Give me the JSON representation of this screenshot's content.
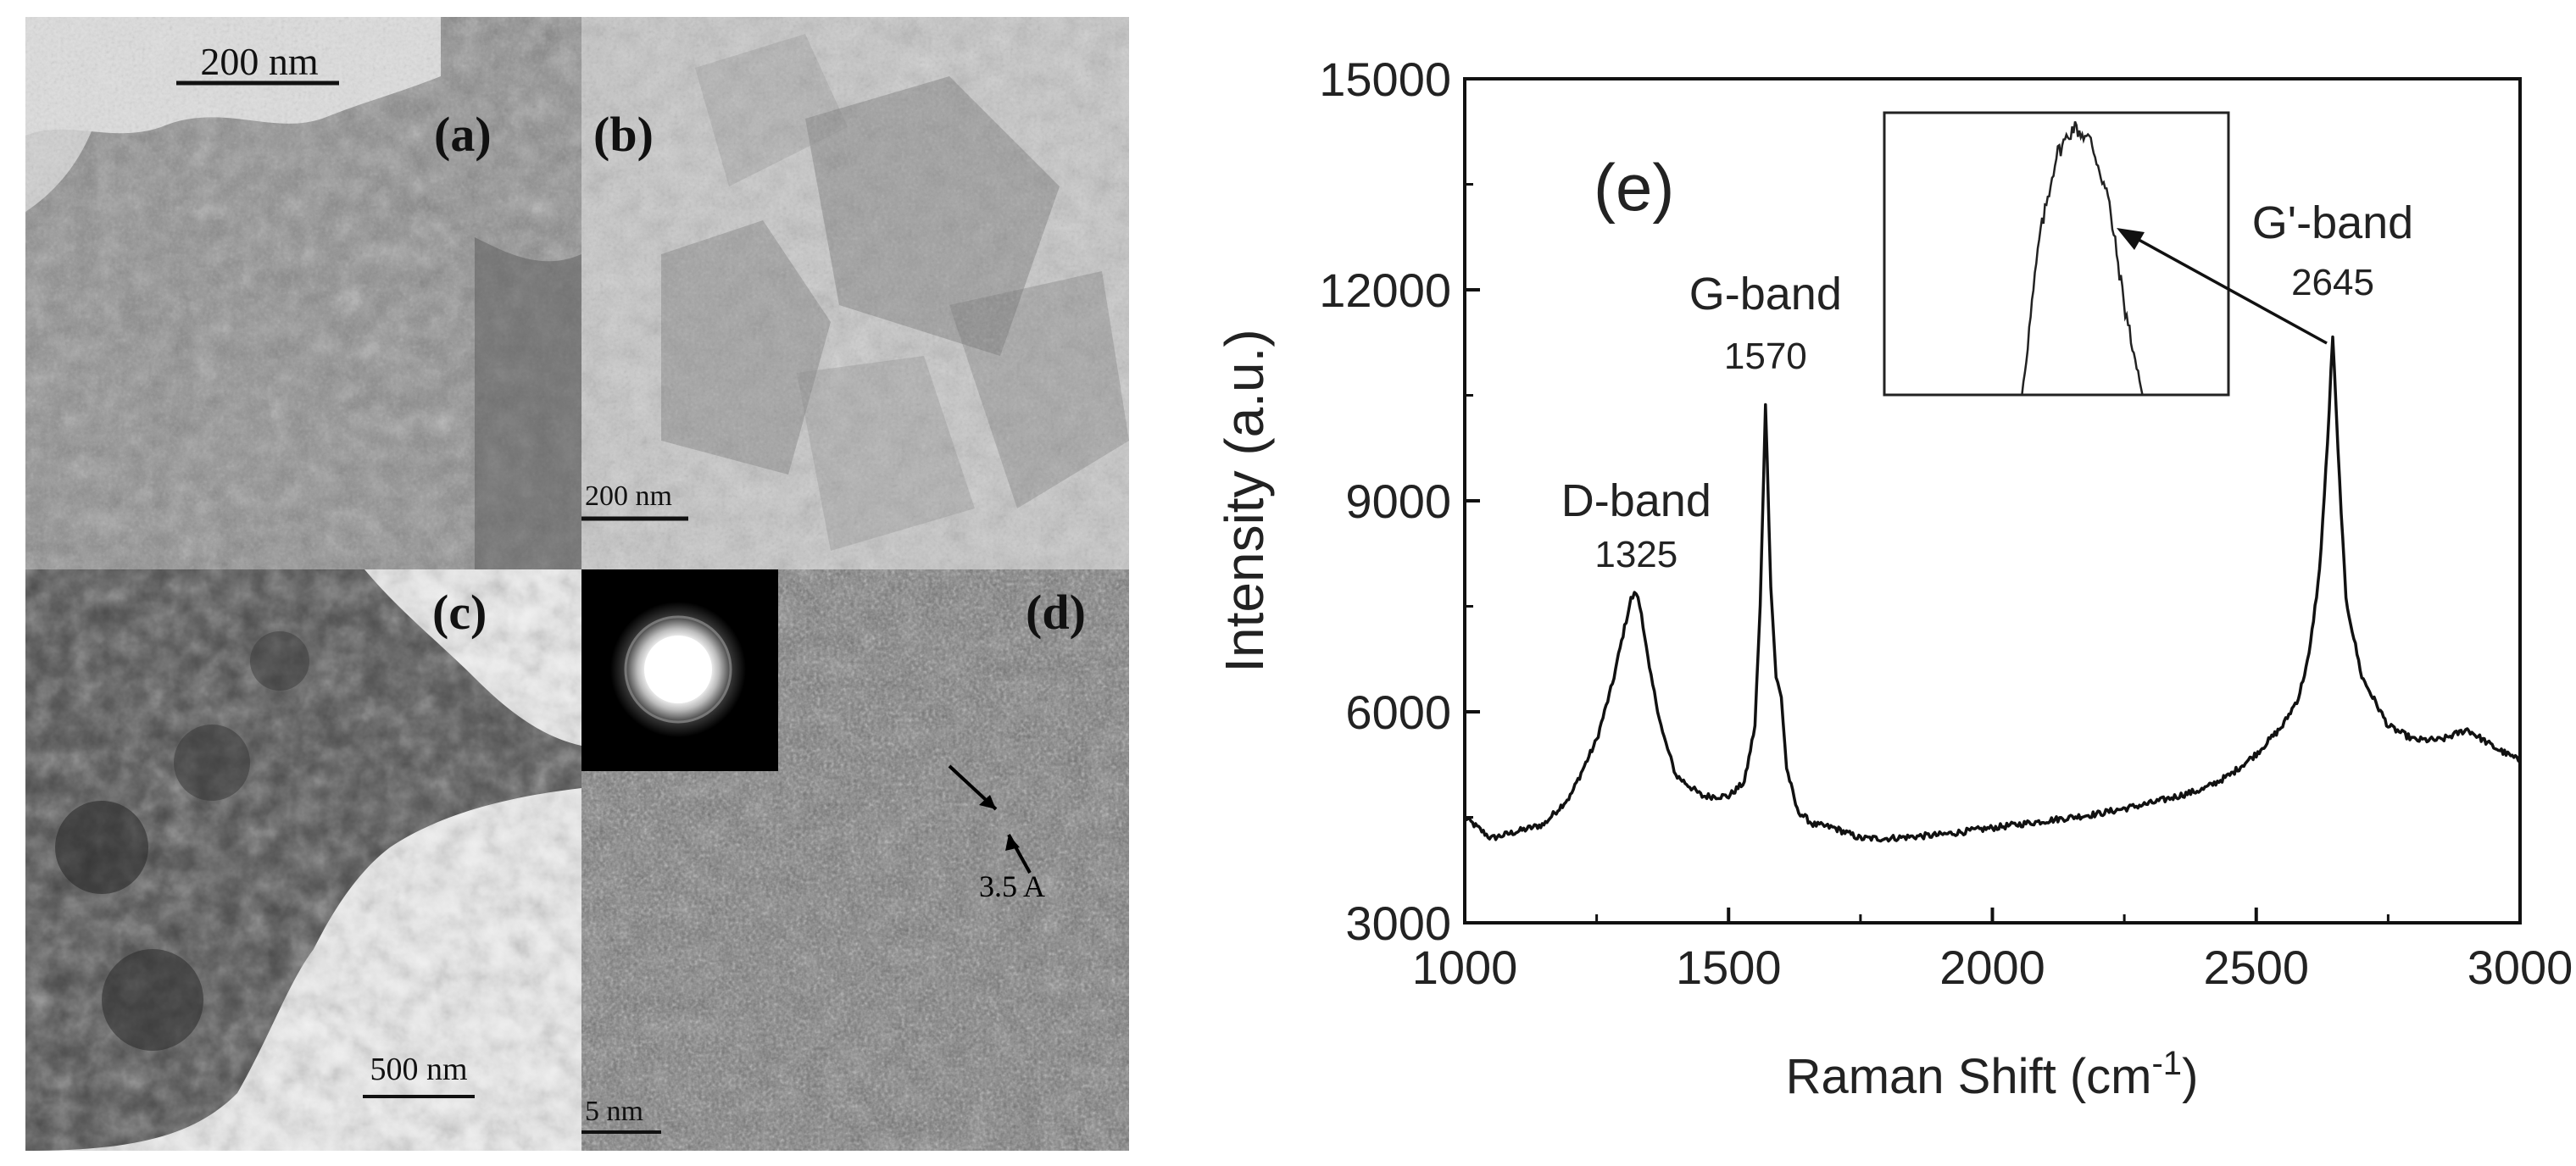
{
  "panels": {
    "a": {
      "label": "(a)",
      "scale_bar": "200 nm"
    },
    "b": {
      "label": "(b)",
      "scale_bar": "200 nm"
    },
    "c": {
      "label": "(c)",
      "scale_bar": "500 nm"
    },
    "d": {
      "label": "(d)",
      "scale_bar": "5 nm",
      "lattice_spacing": "3.5 A"
    }
  },
  "chart_data": {
    "type": "line",
    "panel_label": "(e)",
    "xlabel": "Raman Shift (cm",
    "xlabel_sup": "-1",
    "xlabel_close": ")",
    "ylabel": "Intensity (a.u.)",
    "xlim": [
      1000,
      3000
    ],
    "ylim": [
      3000,
      15000
    ],
    "x_ticks": [
      1000,
      1500,
      2000,
      2500,
      3000
    ],
    "y_ticks": [
      3000,
      6000,
      9000,
      12000,
      15000
    ],
    "grid": false,
    "annotations": [
      {
        "name": "D-band",
        "position": "1325",
        "x": 1325,
        "y": 7700
      },
      {
        "name": "G-band",
        "position": "1570",
        "x": 1570,
        "y": 10400
      },
      {
        "name": "G'-band",
        "position": "2645",
        "x": 2645,
        "y": 11350
      }
    ],
    "series": [
      {
        "x": [
          1000,
          1050,
          1100,
          1150,
          1200,
          1250,
          1280,
          1300,
          1315,
          1325,
          1335,
          1350,
          1375,
          1400,
          1450,
          1500,
          1530,
          1550,
          1560,
          1570,
          1580,
          1590,
          1600,
          1610,
          1630,
          1660,
          1700,
          1750,
          1800,
          1900,
          2000,
          2100,
          2200,
          2300,
          2400,
          2450,
          2500,
          2550,
          2580,
          2600,
          2620,
          2635,
          2645,
          2655,
          2670,
          2700,
          2750,
          2800,
          2850,
          2900,
          2950,
          3000
        ],
        "y": [
          4500,
          4200,
          4300,
          4400,
          4800,
          5600,
          6400,
          7100,
          7600,
          7700,
          7400,
          6600,
          5700,
          5100,
          4800,
          4800,
          5000,
          5800,
          7500,
          10400,
          7800,
          6500,
          6200,
          5200,
          4600,
          4400,
          4350,
          4200,
          4200,
          4250,
          4350,
          4450,
          4550,
          4700,
          4900,
          5100,
          5400,
          5800,
          6200,
          6800,
          8000,
          9800,
          11350,
          9700,
          7600,
          6500,
          5800,
          5600,
          5600,
          5750,
          5500,
          5300
        ]
      }
    ],
    "inset": {
      "x": [
        0,
        0.4,
        0.45,
        0.5,
        0.55,
        0.6,
        0.65,
        0.7,
        0.75,
        1
      ],
      "y": [
        0,
        0,
        0.55,
        0.85,
        0.95,
        0.9,
        0.7,
        0.3,
        0,
        0
      ]
    }
  }
}
